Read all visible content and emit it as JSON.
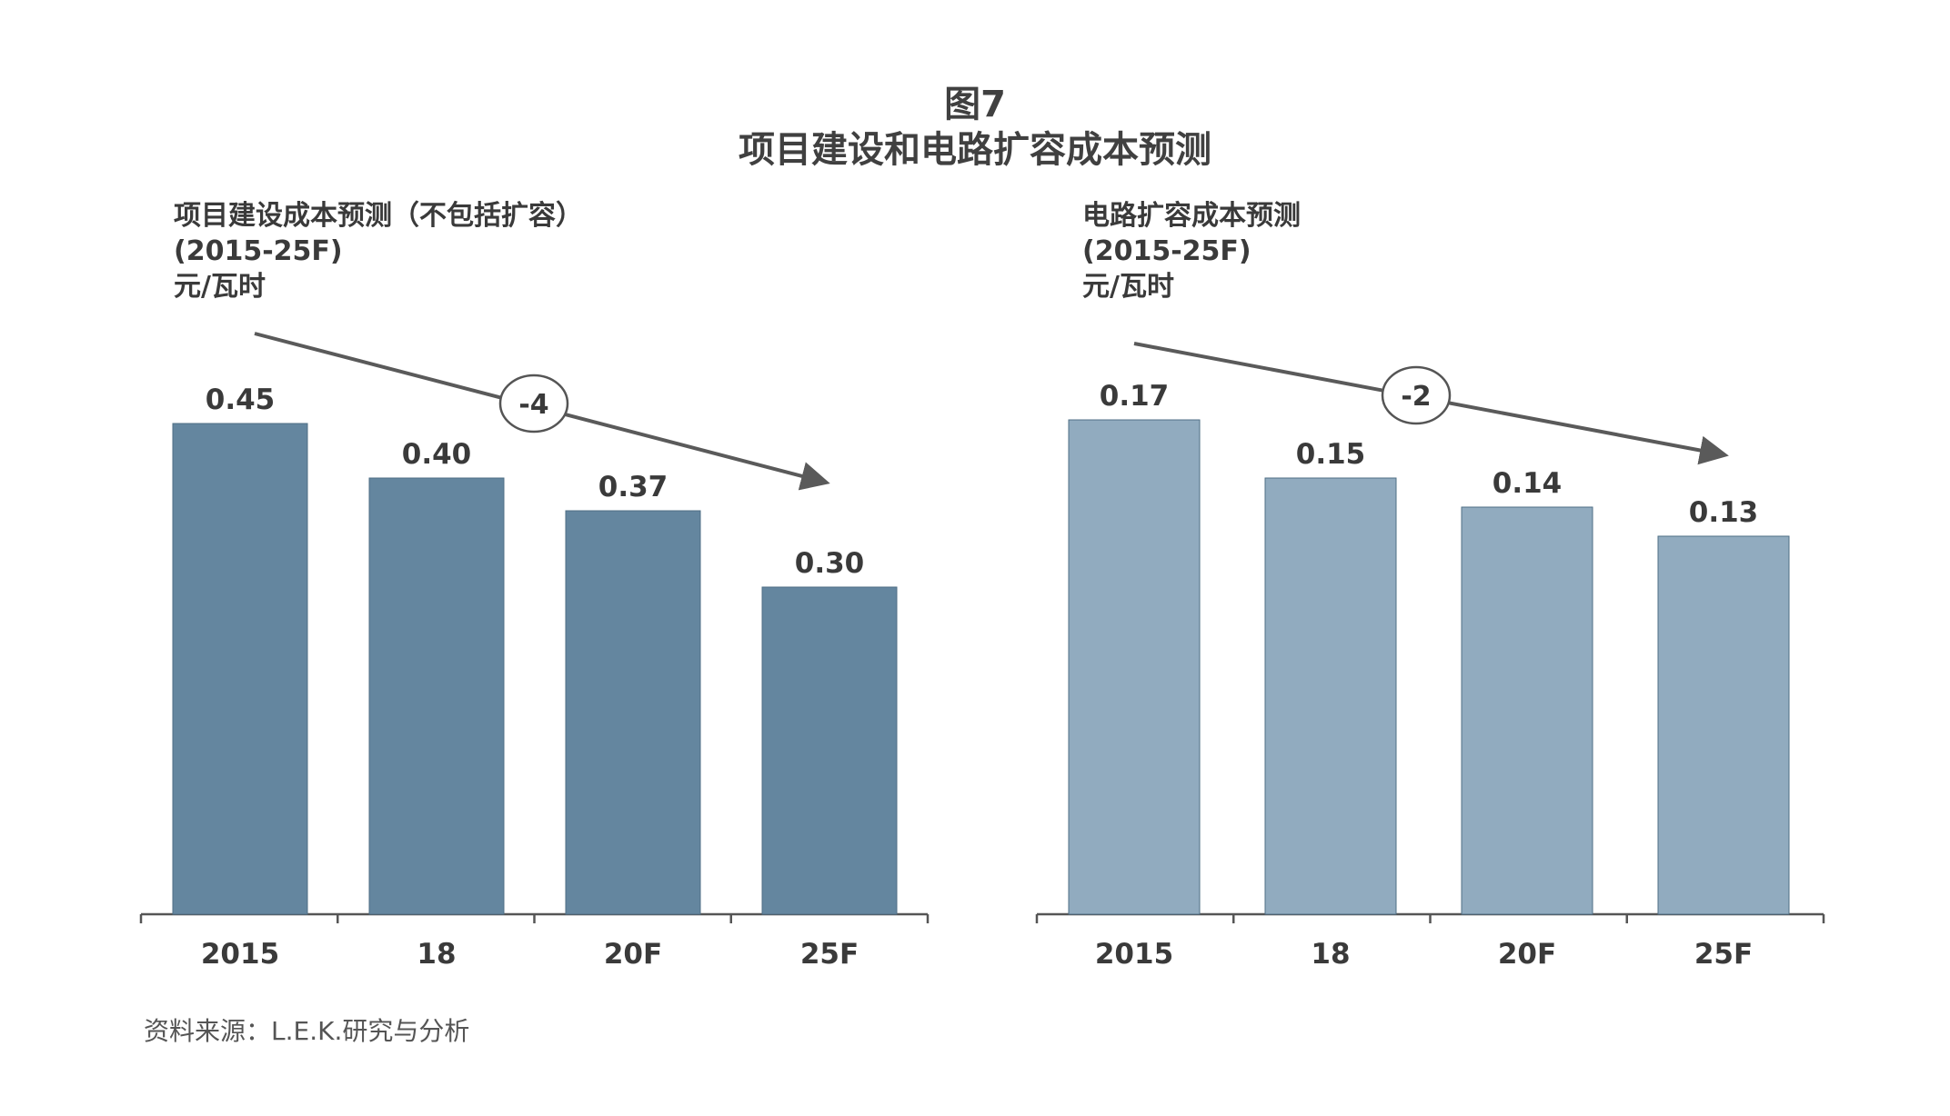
{
  "figure": {
    "number": "图7",
    "title": "项目建设和电路扩容成本预测",
    "source": "资料来源：L.E.K.研究与分析"
  },
  "colors": {
    "left_bar": "#64869f",
    "right_bar": "#91abbf",
    "axis": "#555555",
    "arrow": "#5a5a5a",
    "text": "#3a3a3a"
  },
  "chart_data": [
    {
      "type": "bar",
      "title": "项目建设成本预测（不包括扩容）",
      "subtitle": "(2015-25F)",
      "ylabel": "元/瓦时",
      "categories": [
        "2015",
        "18",
        "20F",
        "25F"
      ],
      "values": [
        0.45,
        0.4,
        0.37,
        0.3
      ],
      "value_labels": [
        "0.45",
        "0.40",
        "0.37",
        "0.30"
      ],
      "trend_annotation": "-4",
      "ylim": [
        0,
        0.5
      ],
      "grid": false,
      "legend": "none"
    },
    {
      "type": "bar",
      "title": "电路扩容成本预测",
      "subtitle": "(2015-25F)",
      "ylabel": "元/瓦时",
      "categories": [
        "2015",
        "18",
        "20F",
        "25F"
      ],
      "values": [
        0.17,
        0.15,
        0.14,
        0.13
      ],
      "value_labels": [
        "0.17",
        "0.15",
        "0.14",
        "0.13"
      ],
      "trend_annotation": "-2",
      "ylim": [
        0,
        0.19
      ],
      "grid": false,
      "legend": "none"
    }
  ]
}
